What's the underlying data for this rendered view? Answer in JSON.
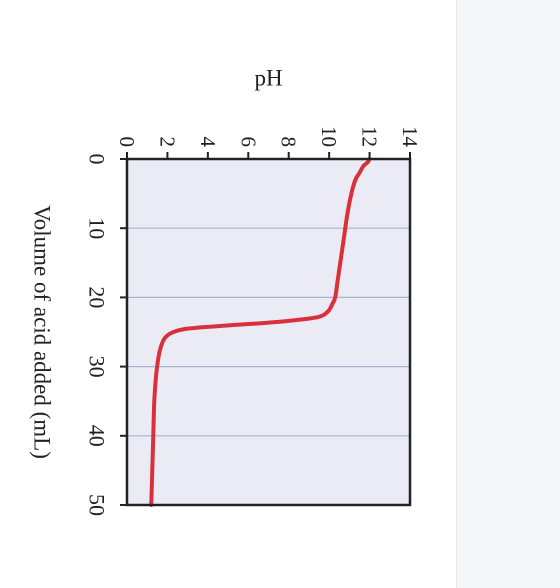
{
  "chart_data": {
    "type": "line",
    "orientation": "rotated-90-clockwise",
    "xlabel": "Volume of acid added (mL)",
    "ylabel": "pH",
    "xlim": [
      0,
      50
    ],
    "ylim": [
      0,
      14
    ],
    "x_ticks": [
      0,
      10,
      20,
      30,
      40,
      50
    ],
    "y_ticks": [
      0,
      2,
      4,
      6,
      8,
      10,
      12,
      14
    ],
    "grid": "horizontal lines at 10, 20, 30, 40 mL",
    "series": [
      {
        "color": "#d9303c",
        "x": [
          0,
          0.5,
          1,
          2,
          3,
          5,
          8,
          12,
          15,
          18,
          20,
          21,
          22,
          22.8,
          23.3,
          23.7,
          24.0,
          24.3,
          24.6,
          25.0,
          25.5,
          26.2,
          28,
          31,
          35,
          40,
          45,
          50
        ],
        "y": [
          12.0,
          11.9,
          11.7,
          11.5,
          11.3,
          11.1,
          10.9,
          10.7,
          10.55,
          10.4,
          10.3,
          10.15,
          9.95,
          9.5,
          8.3,
          6.8,
          5.2,
          3.8,
          2.8,
          2.3,
          2.0,
          1.8,
          1.6,
          1.45,
          1.35,
          1.3,
          1.25,
          1.2
        ]
      }
    ]
  },
  "colors": {
    "plot_background": "#ebebf5",
    "grid": "#aab4cf",
    "frame": "#222222",
    "curve": "#d9303c"
  }
}
